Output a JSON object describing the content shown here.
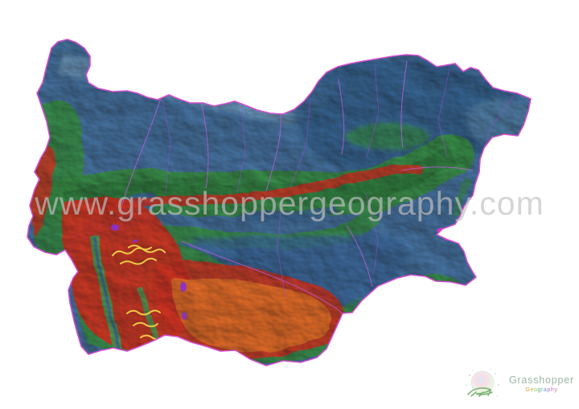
{
  "page": {
    "background_color": "#ffffff"
  },
  "map": {
    "country": "Bulgaria",
    "kind": "hypsometric elevation relief map",
    "border_color": "#d24ecf",
    "river_color": "#b55fd8",
    "boundary_line_color": "#9a4bd0",
    "elevation_colors": {
      "lowland_blue": "#3e6fa2",
      "plateau_dark_blue": "#2b5b8e",
      "plain_blue": "#31639b",
      "valley_blue": "#35689c",
      "coast_light_blue": "#5e92ba",
      "valley_light_blue": "#8ab8d8",
      "hills_green": "#2f8f3e",
      "hills_dark_green": "#1f7030",
      "valley_green": "#3fa14f",
      "mountain_red": "#d92a17",
      "crest_red": "#da2718",
      "high_plateau_orange": "#ee6c1e",
      "peak_yellow": "#f3d24a",
      "peak_violet": "#8a2fd0",
      "lake_magenta": "#cc33cc"
    }
  },
  "watermark": {
    "text": "www.grasshoppergeography.com",
    "color": "#c2c2c2"
  },
  "logo": {
    "brand": "Grasshopper",
    "brand_color": "#9cb6a4",
    "icon_green": "#6aa85e",
    "icon_pastels": [
      "#f3c8d8",
      "#cfe3f2",
      "#d8ecca",
      "#f6ecc2"
    ],
    "subtitle_letters": [
      {
        "ch": "G",
        "color": "#e09a3e"
      },
      {
        "ch": "e",
        "color": "#c9b43a"
      },
      {
        "ch": "o",
        "color": "#8fbf4d"
      },
      {
        "ch": "g",
        "color": "#52b98a"
      },
      {
        "ch": "r",
        "color": "#4aa9c9"
      },
      {
        "ch": "a",
        "color": "#7a8fd4"
      },
      {
        "ch": "p",
        "color": "#a878cc"
      },
      {
        "ch": "h",
        "color": "#c86fb0"
      },
      {
        "ch": "y",
        "color": "#d8778a"
      }
    ]
  }
}
